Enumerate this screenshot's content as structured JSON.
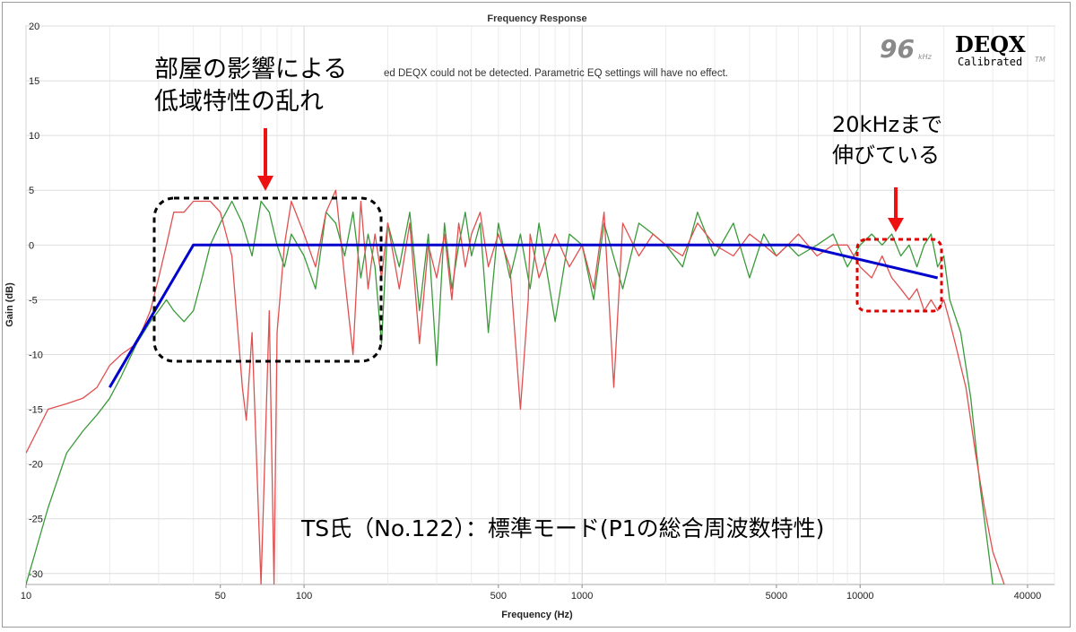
{
  "chart_data": {
    "type": "line",
    "title": "Frequency Response",
    "xlabel": "Frequency (Hz)",
    "ylabel": "Gain (dB)",
    "x_scale": "log",
    "xlim": [
      10,
      50000
    ],
    "ylim": [
      -31,
      20
    ],
    "x_ticks": [
      10,
      50,
      100,
      500,
      1000,
      5000,
      10000,
      40000
    ],
    "x_tick_labels": [
      "10",
      "50",
      "100",
      "500",
      "1000",
      "5000",
      "10000",
      "40000"
    ],
    "y_ticks": [
      20,
      15,
      10,
      5,
      0,
      -5,
      -10,
      -15,
      -20,
      -25,
      -30
    ],
    "y_tick_labels": [
      "20",
      "15",
      "10",
      "5",
      "0",
      "-5",
      "-10",
      "-15",
      "-20",
      "-25",
      "-30"
    ],
    "grid": true,
    "series": [
      {
        "color": "#3a9a3a",
        "x": [
          10,
          12,
          14,
          16,
          18,
          20,
          22,
          25,
          28,
          30,
          32,
          34,
          37,
          40,
          43,
          46,
          50,
          55,
          60,
          65,
          70,
          75,
          80,
          85,
          90,
          100,
          110,
          120,
          130,
          140,
          150,
          160,
          170,
          180,
          190,
          200,
          220,
          240,
          260,
          280,
          300,
          320,
          340,
          360,
          380,
          400,
          430,
          460,
          500,
          550,
          600,
          650,
          700,
          800,
          900,
          1000,
          1100,
          1200,
          1400,
          1600,
          1800,
          2000,
          2300,
          2600,
          3000,
          3500,
          4000,
          4500,
          5000,
          5500,
          6000,
          7000,
          8000,
          9000,
          10000,
          11000,
          12000,
          13000,
          14000,
          15000,
          16000,
          17000,
          18000,
          19000,
          20000,
          21000,
          23000,
          25000,
          27000,
          30000,
          33000
        ],
        "y": [
          -31,
          -24,
          -19,
          -17,
          -15.5,
          -14,
          -12,
          -9,
          -7,
          -6,
          -5,
          -6,
          -7,
          -6,
          -3,
          0,
          2,
          4,
          2,
          -1,
          4,
          3,
          0,
          -2,
          1,
          -1,
          -4,
          3,
          2,
          -1,
          3,
          -3,
          1,
          -2,
          -9,
          2,
          -2,
          3,
          -6,
          1,
          -11,
          2,
          -4,
          0,
          3,
          -1,
          2,
          -8,
          2,
          -3,
          1,
          -4,
          2,
          -7,
          1,
          0,
          -5,
          2,
          -4,
          2,
          1,
          0,
          -2,
          3,
          -1,
          2,
          -3,
          1,
          -1,
          0,
          -1,
          0,
          1,
          -2,
          0,
          1,
          0,
          1,
          -1,
          0,
          -2,
          0,
          1,
          -2,
          -1,
          -5,
          -8,
          -14,
          -22,
          -31,
          -31
        ]
      },
      {
        "color": "#e05050",
        "x": [
          10,
          12,
          14,
          16,
          18,
          20,
          22,
          25,
          28,
          30,
          32,
          34,
          37,
          40,
          43,
          46,
          50,
          55,
          60,
          62,
          65,
          70,
          75,
          78,
          80,
          85,
          90,
          100,
          110,
          120,
          130,
          140,
          150,
          160,
          170,
          180,
          190,
          200,
          220,
          240,
          260,
          280,
          300,
          320,
          340,
          360,
          380,
          400,
          430,
          460,
          500,
          550,
          600,
          640,
          650,
          700,
          800,
          900,
          1000,
          1100,
          1200,
          1300,
          1400,
          1600,
          1800,
          2000,
          2300,
          2600,
          3000,
          3500,
          4000,
          4500,
          5000,
          5500,
          6000,
          7000,
          8000,
          9000,
          10000,
          11000,
          12000,
          13000,
          14000,
          15000,
          16000,
          17000,
          18000,
          19000,
          20000,
          21000,
          22000,
          24000,
          26000,
          28000,
          30000,
          33000
        ],
        "y": [
          -19,
          -15,
          -14.5,
          -14,
          -13,
          -11,
          -10,
          -9,
          -6,
          -3,
          0,
          3,
          3,
          4,
          4,
          4,
          3,
          -1,
          -13,
          -16,
          -8,
          -31,
          -6,
          -31,
          -8,
          0,
          4,
          1,
          -2,
          3,
          5,
          -3,
          -10,
          4,
          -4,
          1,
          -3,
          2,
          -4,
          2,
          -9,
          0,
          -3,
          1,
          -5,
          2,
          -2,
          1,
          3,
          -2,
          1,
          -2,
          -15,
          -5,
          1,
          -3,
          1,
          -2,
          0,
          -4,
          3,
          -13,
          2,
          -1,
          1,
          0,
          -1,
          2,
          0,
          -1,
          1,
          0,
          -1,
          0,
          1,
          -1,
          0,
          0,
          -2,
          -3,
          -1,
          -3,
          -4,
          -5,
          -4,
          -6,
          -5,
          -6,
          -5,
          -7,
          -9,
          -13,
          -19,
          -24,
          -28,
          -31
        ]
      }
    ],
    "target_curve": {
      "color": "#0000cc",
      "x": [
        20,
        40,
        6000,
        19000
      ],
      "y": [
        -13,
        0,
        0,
        -3
      ]
    }
  },
  "warning_text": "ed DEQX could not be detected.  Parametric EQ settings will have no effect.",
  "logo": {
    "rate": "96",
    "unit": "kHz",
    "brand": "DEQX",
    "sub": "Calibrated",
    "tm": "TM"
  },
  "annotations": {
    "left_line1": "部屋の影響による",
    "left_line2": "低域特性の乱れ",
    "right_line1": "20kHzまで",
    "right_line2": "伸びている",
    "caption": "TS氏（No.122）：標準モード(P1の総合周波数特性)"
  },
  "highlight_colors": {
    "left_box": "#000000",
    "right_box": "#dd0000",
    "arrow": "#ee1111"
  }
}
